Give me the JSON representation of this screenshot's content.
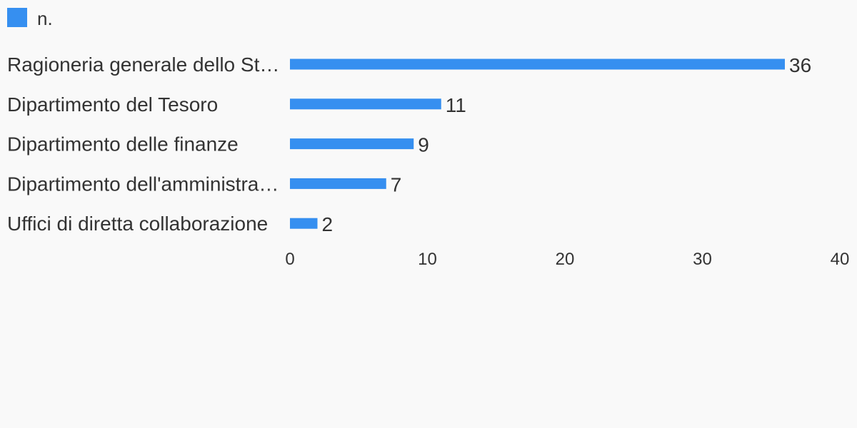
{
  "chart_data": {
    "type": "bar",
    "orientation": "horizontal",
    "categories": [
      "Ragioneria generale dello St…",
      "Dipartimento del Tesoro",
      "Dipartimento delle finanze",
      "Dipartimento dell'amministra…",
      "Uffici di diretta collaborazione"
    ],
    "series": [
      {
        "name": "n.",
        "values": [
          36,
          11,
          9,
          7,
          2
        ],
        "color": "#368ff0"
      }
    ],
    "xlim": [
      0,
      40
    ],
    "xticks": [
      0,
      10,
      20,
      30,
      40
    ],
    "legend": "top-left",
    "grid": false
  }
}
